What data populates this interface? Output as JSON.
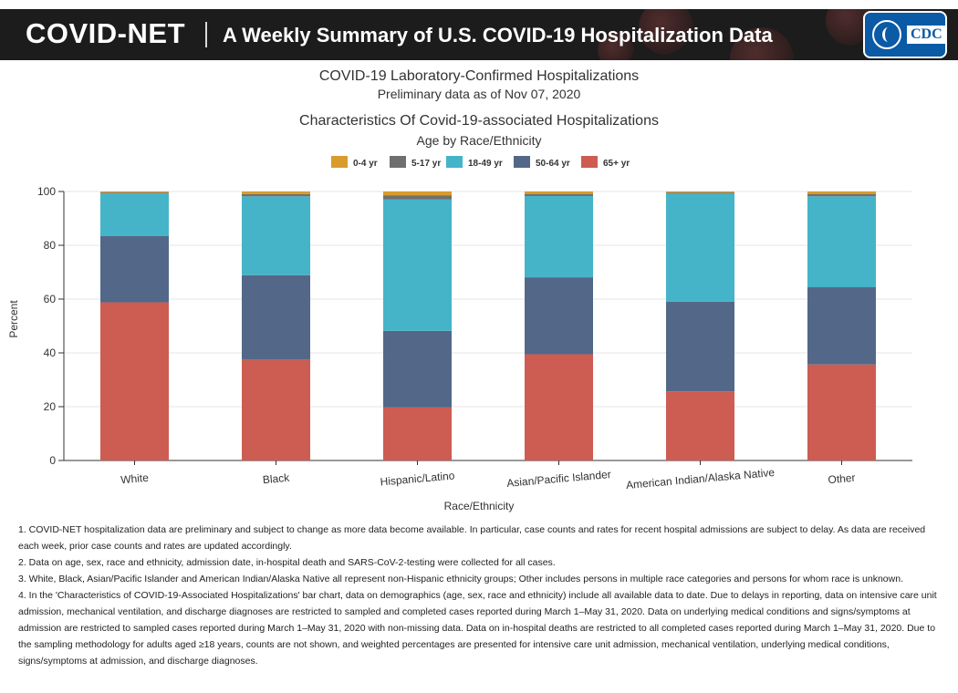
{
  "header": {
    "brand": "COVID-NET",
    "tagline": "A Weekly Summary of U.S. COVID-19 Hospitalization Data",
    "logo_text": "CDC",
    "background_color": "#1c1c1c"
  },
  "titles": {
    "main": "COVID-19 Laboratory-Confirmed Hospitalizations",
    "date": "Preliminary data as of Nov 07, 2020"
  },
  "chart_data": {
    "type": "bar",
    "stacked": true,
    "title": "Characteristics Of Covid-19-associated Hospitalizations",
    "subtitle": "Age by Race/Ethnicity",
    "xlabel": "Race/Ethnicity",
    "ylabel": "Percent",
    "ylim": [
      0,
      100
    ],
    "yticks": [
      0,
      20,
      40,
      60,
      80,
      100
    ],
    "grid": "horizontal",
    "legend_position": "top-center",
    "categories": [
      "White",
      "Black",
      "Hispanic/Latino",
      "Asian/Pacific Islander",
      "American Indian/Alaska Native",
      "Other"
    ],
    "series": [
      {
        "name": "0-4 yr",
        "color": "#d99b2b",
        "values": [
          0.4,
          1.0,
          1.4,
          0.9,
          0.4,
          0.9
        ]
      },
      {
        "name": "5-17 yr",
        "color": "#6f6f6f",
        "values": [
          0.3,
          0.8,
          1.6,
          0.8,
          0.4,
          0.9
        ]
      },
      {
        "name": "18-49 yr",
        "color": "#45b4c8",
        "values": [
          15.8,
          29.3,
          48.8,
          30.2,
          40.2,
          33.8
        ]
      },
      {
        "name": "50-64 yr",
        "color": "#536889",
        "values": [
          24.7,
          31.4,
          28.5,
          28.6,
          33.3,
          28.7
        ]
      },
      {
        "name": "65+ yr",
        "color": "#cd5c53",
        "values": [
          58.8,
          37.5,
          19.7,
          39.5,
          25.7,
          35.7
        ]
      }
    ]
  },
  "notes": [
    "1. COVID-NET hospitalization data are preliminary and subject to change as more data become available. In particular, case counts and rates for recent hospital admissions are subject to delay. As data are received each week, prior case counts and rates are updated accordingly.",
    "2. Data on age, sex, race and ethnicity, admission date, in-hospital death and SARS-CoV-2-testing were collected for all cases.",
    "3. White, Black, Asian/Pacific Islander and American Indian/Alaska Native all represent non-Hispanic ethnicity groups; Other includes persons in multiple race categories and persons for whom race is unknown.",
    "4. In the 'Characteristics of COVID-19-Associated Hospitalizations' bar chart, data on demographics (age, sex, race and ethnicity) include all available data to date. Due to delays in reporting, data on intensive care unit admission, mechanical ventilation, and discharge diagnoses are restricted to sampled and completed cases reported during March 1–May 31, 2020. Data on underlying medical conditions and signs/symptoms at admission are restricted to sampled cases reported during March 1–May 31, 2020 with non-missing data. Data on in-hospital deaths are restricted to all completed cases reported during March 1–May 31, 2020. Due to the sampling methodology for adults aged ≥18 years, counts are not shown, and weighted percentages are presented for intensive care unit admission, mechanical ventilation, underlying medical conditions, signs/symptoms at admission, and discharge diagnoses."
  ]
}
